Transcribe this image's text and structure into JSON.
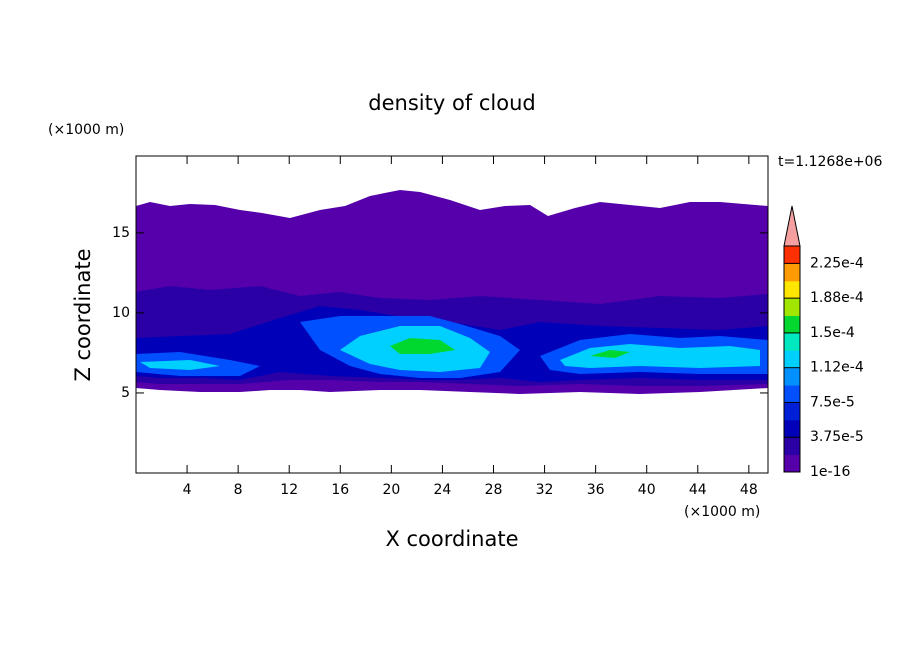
{
  "chart_data": {
    "type": "contour",
    "title": "density of cloud",
    "annotation": "t=1.1268e+06",
    "x_label": "X coordinate",
    "y_label": "Z coordinate",
    "x_unit": "(×1000 m)",
    "y_unit": "(×1000 m)",
    "xlim": [
      0,
      49.5
    ],
    "ylim": [
      0,
      19.8
    ],
    "xticks": [
      4,
      8,
      12,
      16,
      20,
      24,
      28,
      32,
      36,
      40,
      44,
      48
    ],
    "yticks": [
      5,
      10,
      15
    ],
    "colorbar": {
      "clim": [
        1e-16,
        0.00024375
      ],
      "ticks": [
        1e-16,
        {
          "value": 3.75e-05,
          "label": "3.75e-5"
        },
        {
          "value": 7.5e-05,
          "label": "7.5e-5"
        },
        {
          "value": 0.0001125,
          "label": "1.12e-4"
        },
        {
          "value": 0.00015,
          "label": "1.5e-4"
        },
        {
          "value": 0.0001875,
          "label": "1.88e-4"
        },
        {
          "value": 0.000225,
          "label": "2.25e-4"
        }
      ],
      "colors": [
        "#5500aa",
        "#2a00a6",
        "#0000b8",
        "#0020d8",
        "#0050ff",
        "#0090ff",
        "#00d0ff",
        "#00e8c0",
        "#00d830",
        "#a0e600",
        "#ffe600",
        "#ff9a00",
        "#ff3000"
      ],
      "over_color": "#f5a0a0"
    }
  }
}
